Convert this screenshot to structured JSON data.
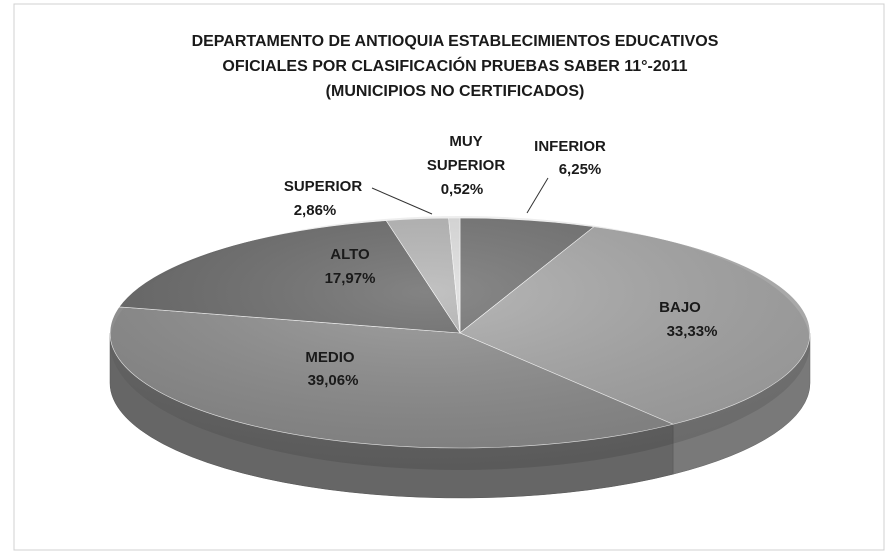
{
  "chart_data": {
    "type": "pie",
    "title": [
      "DEPARTAMENTO DE ANTIOQUIA ESTABLECIMIENTOS EDUCATIVOS",
      "OFICIALES POR CLASIFICACIÓN PRUEBAS SABER 11°-2011",
      "(MUNICIPIOS NO CERTIFICADOS)"
    ],
    "categories": [
      "INFERIOR",
      "BAJO",
      "MEDIO",
      "ALTO",
      "SUPERIOR",
      "MUY SUPERIOR"
    ],
    "values": [
      6.25,
      33.33,
      39.06,
      17.97,
      2.86,
      0.52
    ],
    "value_labels": [
      "6,25%",
      "33,33%",
      "39,06%",
      "17,97%",
      "2,86%",
      "0,52%"
    ],
    "colors": [
      "#707070",
      "#a8a8a8",
      "#8e8e8e",
      "#686868",
      "#b4b4b4",
      "#dedede"
    ]
  }
}
